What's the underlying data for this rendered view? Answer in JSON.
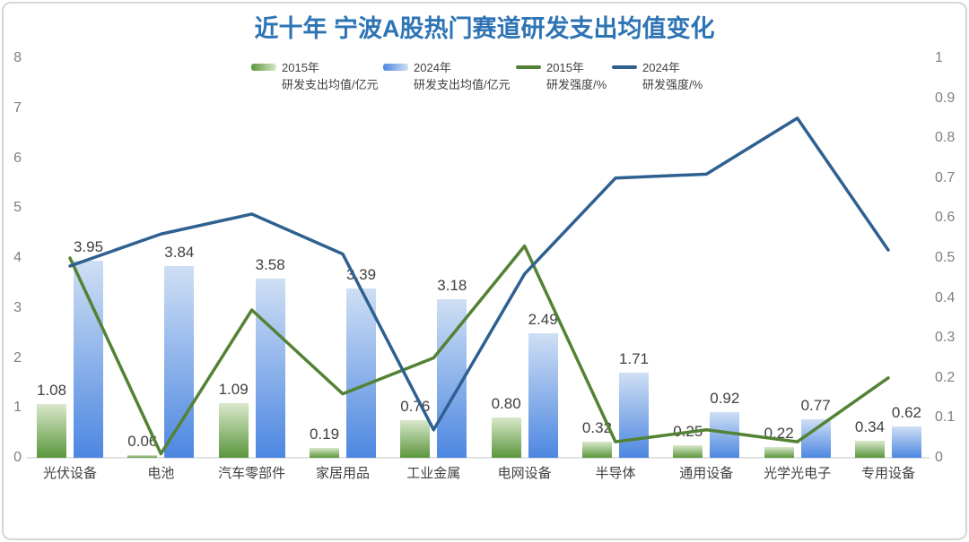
{
  "title": "近十年 宁波A股热门赛道研发支出均值变化",
  "legend": {
    "items": [
      {
        "line1": "2015年",
        "line2": "研发支出均值/亿元",
        "swatch": "bar-green"
      },
      {
        "line1": "2024年",
        "line2": "研发支出均值/亿元",
        "swatch": "bar-blue"
      },
      {
        "line1": "2015年",
        "line2": "研发强度/%",
        "swatch": "line-green"
      },
      {
        "line1": "2024年",
        "line2": "研发强度/%",
        "swatch": "line-blue"
      }
    ]
  },
  "colors": {
    "title": "#2e74b5",
    "bar_2015_top": "#d9e8cb",
    "bar_2015_bottom": "#5a963c",
    "bar_2024_top": "#cfdff4",
    "bar_2024_bottom": "#4d87e1",
    "line_2015": "#548235",
    "line_2024": "#2e6090",
    "axis_text": "#7f7f7f",
    "label_text": "#404040",
    "axis_line": "#e3e3e3"
  },
  "chart_data": {
    "type": "bar+line",
    "title": "近十年 宁波A股热门赛道研发支出均值变化",
    "categories": [
      "光伏设备",
      "电池",
      "汽车零部件",
      "家居用品",
      "工业金属",
      "电网设备",
      "半导体",
      "通用设备",
      "光学光电子",
      "专用设备"
    ],
    "series": [
      {
        "name": "2015年研发支出均值/亿元",
        "type": "bar",
        "axis": "left",
        "values": [
          1.08,
          0.06,
          1.09,
          0.19,
          0.76,
          0.8,
          0.32,
          0.25,
          0.22,
          0.34
        ],
        "labels": [
          "1.08",
          "0.06",
          "1.09",
          "0.19",
          "0.76",
          "0.80",
          "0.32",
          "0.25",
          "0.22",
          "0.34"
        ]
      },
      {
        "name": "2024年研发支出均值/亿元",
        "type": "bar",
        "axis": "left",
        "values": [
          3.95,
          3.84,
          3.58,
          3.39,
          3.18,
          2.49,
          1.71,
          0.92,
          0.77,
          0.62
        ],
        "labels": [
          "3.95",
          "3.84",
          "3.58",
          "3.39",
          "3.18",
          "2.49",
          "1.71",
          "0.92",
          "0.77",
          "0.62"
        ]
      },
      {
        "name": "2015年研发强度/%",
        "type": "line",
        "axis": "right",
        "values": [
          0.5,
          0.01,
          0.37,
          0.16,
          0.25,
          0.53,
          0.04,
          0.07,
          0.04,
          0.2
        ]
      },
      {
        "name": "2024年研发强度/%",
        "type": "line",
        "axis": "right",
        "values": [
          0.48,
          0.56,
          0.61,
          0.51,
          0.07,
          0.46,
          0.7,
          0.71,
          0.85,
          0.52
        ]
      }
    ],
    "left_axis": {
      "min": 0,
      "max": 8,
      "tick_step": 1,
      "ticks": [
        "0",
        "1",
        "2",
        "3",
        "4",
        "5",
        "6",
        "7",
        "8"
      ]
    },
    "right_axis": {
      "min": 0,
      "max": 1,
      "tick_step": 0.1,
      "ticks": [
        "0",
        "0.1",
        "0.2",
        "0.3",
        "0.4",
        "0.5",
        "0.6",
        "0.7",
        "0.8",
        "0.9",
        "1"
      ]
    },
    "grid": false,
    "legend_position": "top",
    "data_labels": "bars-only"
  }
}
